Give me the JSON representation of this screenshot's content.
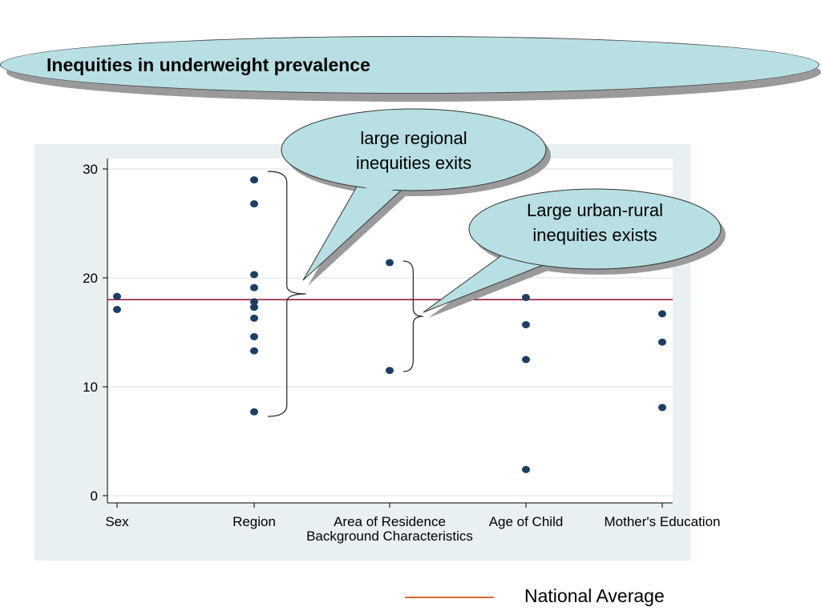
{
  "title": "Inequities in underweight prevalence",
  "colors": {
    "banner_fill": "#b8dfe3",
    "plot_background": "#e8f0f2",
    "points": "#1d3e64",
    "national_average_line": "#9b1b3c",
    "legend_line": "#d9692c"
  },
  "chart_data": {
    "type": "scatter",
    "xlabel": "Background Characteristics",
    "ylabel": "",
    "categories": [
      "Sex",
      "Region",
      "Area of Residence",
      "Age of Child",
      "Mother's Education"
    ],
    "ylim": [
      0,
      30
    ],
    "yticks": [
      0,
      10,
      20,
      30
    ],
    "grid": true,
    "series": [
      {
        "category": "Sex",
        "values": [
          18.3,
          17.1
        ]
      },
      {
        "category": "Region",
        "values": [
          29.0,
          26.8,
          20.3,
          19.1,
          17.8,
          17.3,
          16.3,
          14.6,
          13.3,
          7.7
        ]
      },
      {
        "category": "Area of Residence",
        "values": [
          21.4,
          11.5
        ]
      },
      {
        "category": "Age of Child",
        "values": [
          18.2,
          15.7,
          12.5,
          2.4
        ]
      },
      {
        "category": "Mother's Education",
        "values": [
          16.7,
          14.1,
          8.1
        ]
      }
    ],
    "reference_line": {
      "name": "National Average",
      "value": 18.0
    },
    "annotations": [
      {
        "text": [
          "large regional",
          "inequities exits"
        ],
        "category": "Region"
      },
      {
        "text": [
          "Large urban-rural",
          "inequities exists"
        ],
        "category": "Area of Residence"
      }
    ],
    "legend": {
      "position": "bottom-right",
      "label": "National Average"
    }
  }
}
